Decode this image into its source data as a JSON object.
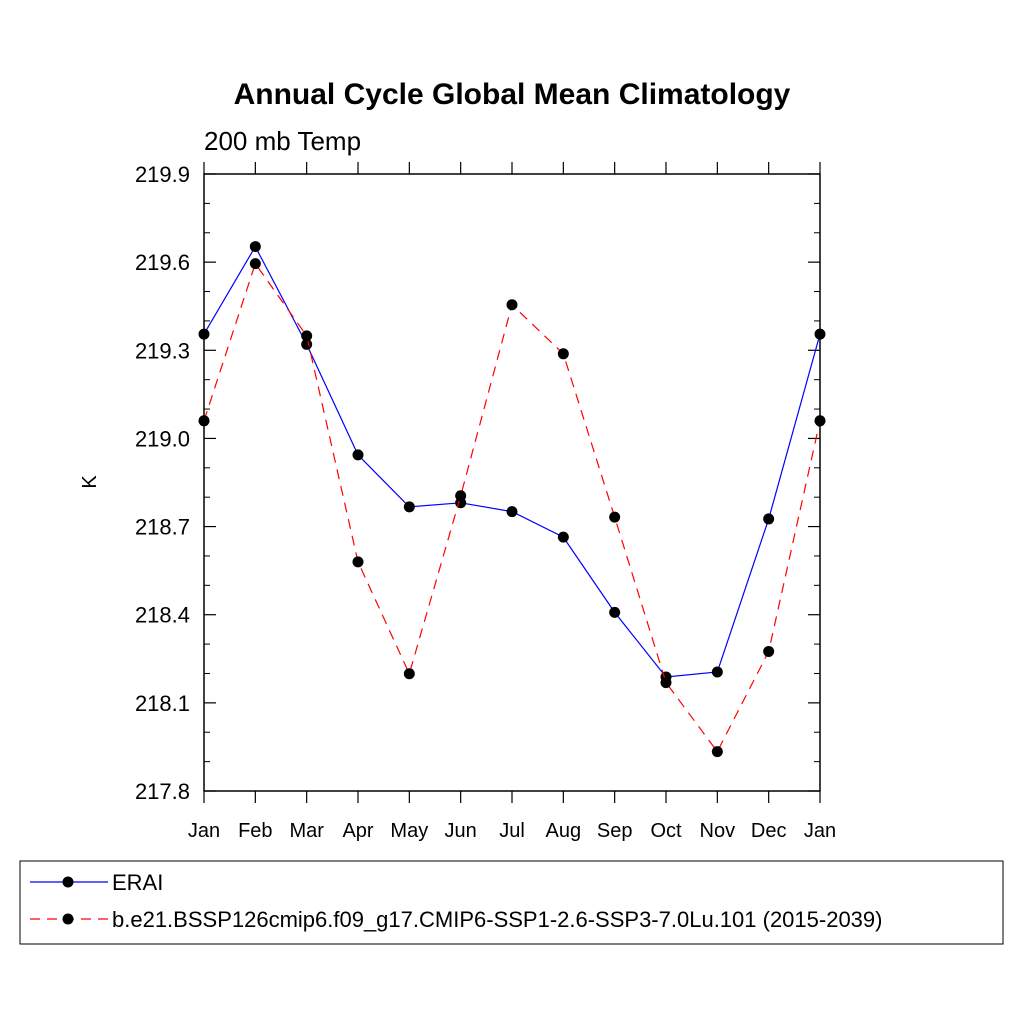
{
  "chart_data": {
    "type": "line",
    "title": "Annual Cycle Global Mean Climatology",
    "subtitle": "200 mb Temp",
    "ylabel": "K",
    "xlabel": "",
    "ylim": [
      217.8,
      219.9
    ],
    "yticks": [
      "217.8",
      "218.1",
      "218.4",
      "218.7",
      "219.0",
      "219.3",
      "219.6",
      "219.9"
    ],
    "categories": [
      "Jan",
      "Feb",
      "Mar",
      "Apr",
      "May",
      "Jun",
      "Jul",
      "Aug",
      "Sep",
      "Oct",
      "Nov",
      "Dec",
      "Jan"
    ],
    "grid": false,
    "legend_position": "bottom",
    "series": [
      {
        "name": "ERAI",
        "color": "#0000ff",
        "dash": "solid",
        "values": [
          219.355,
          219.653,
          219.32,
          218.944,
          218.767,
          218.781,
          218.751,
          218.664,
          218.408,
          218.188,
          218.205,
          218.726,
          219.355
        ]
      },
      {
        "name": "b.e21.BSSP126cmip6.f09_g17.CMIP6-SSP1-2.6-SSP3-7.0Lu.101 (2015-2039)",
        "color": "#ff0000",
        "dash": "dashed",
        "values": [
          219.06,
          219.595,
          219.349,
          218.58,
          218.199,
          218.805,
          219.455,
          219.288,
          218.732,
          218.169,
          217.934,
          218.275,
          219.06
        ]
      }
    ]
  }
}
